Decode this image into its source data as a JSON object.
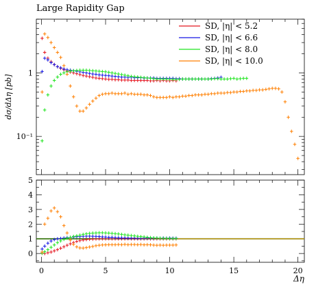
{
  "chart_data": {
    "type": "scatter",
    "title": "Large Rapidity Gap",
    "xlabel": "Δη",
    "ylabel": "dσ/dΔη [pb]",
    "xlim": [
      -0.4,
      20.5
    ],
    "ylim": [
      0.025,
      7
    ],
    "yscale": "log",
    "legend": "top-right",
    "main_y_ticks": [
      {
        "value": 1,
        "label": "1"
      },
      {
        "value": 0.1,
        "label": "10⁻¹"
      }
    ],
    "x_ticks": [
      {
        "value": 0,
        "label": "0"
      },
      {
        "value": 5,
        "label": "5"
      },
      {
        "value": 10,
        "label": "10"
      },
      {
        "value": 15,
        "label": "15"
      },
      {
        "value": 20,
        "label": "20"
      }
    ],
    "ratio": {
      "ylim": [
        -0.6,
        5
      ],
      "y_ticks": [
        {
          "value": 0,
          "label": "0"
        },
        {
          "value": 1,
          "label": "1"
        },
        {
          "value": 2,
          "label": "2"
        },
        {
          "value": 3,
          "label": "3"
        },
        {
          "value": 4,
          "label": "4"
        },
        {
          "value": 5,
          "label": "5"
        }
      ],
      "reference": 1
    },
    "series": [
      {
        "name": "SD, |η| < 5.2",
        "color": "#e4141e",
        "x": [
          0.05,
          0.25,
          0.5,
          0.75,
          1.0,
          1.25,
          1.5,
          1.75,
          2.0,
          2.25,
          2.5,
          2.75,
          3.0,
          3.25,
          3.5,
          3.75,
          4.0,
          4.25,
          4.5,
          4.75,
          5.0,
          5.25,
          5.5,
          5.75,
          6.0,
          6.25,
          6.5,
          6.75,
          7.0,
          7.25,
          7.5,
          7.75,
          8.0,
          8.25,
          8.5,
          8.75,
          9.0,
          9.25,
          9.5,
          9.75,
          10.0,
          10.25,
          10.5
        ],
        "y": [
          3.5,
          2.1,
          1.7,
          1.5,
          1.35,
          1.25,
          1.18,
          1.12,
          1.07,
          1.03,
          1.0,
          0.97,
          0.94,
          0.91,
          0.89,
          0.87,
          0.85,
          0.83,
          0.82,
          0.81,
          0.8,
          0.79,
          0.79,
          0.78,
          0.78,
          0.77,
          0.77,
          0.77,
          0.76,
          0.76,
          0.76,
          0.76,
          0.76,
          0.76,
          0.75,
          0.75,
          0.76,
          0.75,
          0.76,
          0.75,
          0.75,
          0.76,
          0.75
        ],
        "ratio": [
          0.02,
          0.0,
          0.05,
          0.1,
          0.18,
          0.26,
          0.36,
          0.46,
          0.56,
          0.66,
          0.74,
          0.82,
          0.88,
          0.92,
          0.95,
          0.97,
          0.98,
          0.99,
          1.0,
          1.0,
          1.0,
          1.01,
          1.0,
          1.0,
          1.0,
          1.0,
          1.0,
          1.01,
          1.0,
          1.0,
          1.0,
          1.0,
          1.0,
          1.01,
          1.0,
          1.0,
          1.0,
          1.0,
          1.0,
          1.0,
          1.0,
          1.0,
          1.0
        ]
      },
      {
        "name": "SD, |η| < 6.6",
        "color": "#1414e4",
        "x": [
          0.05,
          0.25,
          0.5,
          0.75,
          1.0,
          1.25,
          1.5,
          1.75,
          2.0,
          2.25,
          2.5,
          2.75,
          3.0,
          3.25,
          3.5,
          3.75,
          4.0,
          4.25,
          4.5,
          4.75,
          5.0,
          5.25,
          5.5,
          5.75,
          6.0,
          6.25,
          6.5,
          6.75,
          7.0,
          7.25,
          7.5,
          7.75,
          8.0,
          8.25,
          8.5,
          8.75,
          9.0,
          9.25,
          9.5,
          9.75,
          10.0,
          10.25,
          10.5,
          10.75,
          11.0,
          11.25,
          11.5,
          11.75,
          12.0,
          12.25,
          12.5,
          12.75,
          13.0,
          13.25,
          13.5,
          13.75,
          14.0
        ],
        "y": [
          1.05,
          1.7,
          1.6,
          1.45,
          1.35,
          1.25,
          1.2,
          1.15,
          1.12,
          1.1,
          1.08,
          1.06,
          1.04,
          1.02,
          1.0,
          0.98,
          0.96,
          0.95,
          0.93,
          0.92,
          0.91,
          0.9,
          0.89,
          0.88,
          0.87,
          0.86,
          0.86,
          0.85,
          0.85,
          0.84,
          0.84,
          0.84,
          0.83,
          0.83,
          0.83,
          0.83,
          0.82,
          0.82,
          0.82,
          0.82,
          0.82,
          0.82,
          0.81,
          0.81,
          0.8,
          0.8,
          0.8,
          0.8,
          0.8,
          0.8,
          0.8,
          0.8,
          0.8,
          0.81,
          0.82,
          0.83,
          0.85
        ],
        "ratio": [
          0.3,
          0.5,
          0.7,
          0.85,
          0.95,
          1.0,
          1.02,
          1.05,
          1.08,
          1.1,
          1.12,
          1.14,
          1.15,
          1.17,
          1.18,
          1.18,
          1.17,
          1.16,
          1.15,
          1.13,
          1.12,
          1.1,
          1.1,
          1.08,
          1.07,
          1.06,
          1.06,
          1.05,
          1.05,
          1.05,
          1.04,
          1.04,
          1.04,
          1.05,
          1.04,
          1.04,
          1.05,
          1.04,
          1.05,
          1.04,
          1.05,
          1.04,
          1.04
        ]
      },
      {
        "name": "SD, |η| < 8.0",
        "color": "#1ee41e",
        "x": [
          0.05,
          0.25,
          0.5,
          0.75,
          1.0,
          1.25,
          1.5,
          1.75,
          2.0,
          2.25,
          2.5,
          2.75,
          3.0,
          3.25,
          3.5,
          3.75,
          4.0,
          4.25,
          4.5,
          4.75,
          5.0,
          5.25,
          5.5,
          5.75,
          6.0,
          6.25,
          6.5,
          6.75,
          7.0,
          7.25,
          7.5,
          7.75,
          8.0,
          8.25,
          8.5,
          8.75,
          9.0,
          9.25,
          9.5,
          9.75,
          10.0,
          10.25,
          10.5,
          10.75,
          11.0,
          11.25,
          11.5,
          11.75,
          12.0,
          12.25,
          12.5,
          12.75,
          13.0,
          13.25,
          13.5,
          13.75,
          14.0,
          14.25,
          14.5,
          14.75,
          15.0,
          15.25,
          15.5,
          15.75,
          16.0
        ],
        "y": [
          0.085,
          0.26,
          0.45,
          0.62,
          0.76,
          0.86,
          0.95,
          1.0,
          1.04,
          1.07,
          1.08,
          1.09,
          1.1,
          1.1,
          1.1,
          1.09,
          1.08,
          1.07,
          1.06,
          1.05,
          1.04,
          1.02,
          1.0,
          0.98,
          0.96,
          0.94,
          0.92,
          0.9,
          0.88,
          0.87,
          0.86,
          0.85,
          0.84,
          0.83,
          0.82,
          0.81,
          0.8,
          0.8,
          0.8,
          0.8,
          0.79,
          0.79,
          0.79,
          0.79,
          0.8,
          0.8,
          0.8,
          0.8,
          0.8,
          0.8,
          0.8,
          0.8,
          0.8,
          0.8,
          0.81,
          0.81,
          0.8,
          0.8,
          0.8,
          0.81,
          0.82,
          0.8,
          0.81,
          0.82,
          0.82
        ],
        "ratio": [
          0.02,
          0.12,
          0.26,
          0.42,
          0.58,
          0.74,
          0.86,
          0.96,
          1.04,
          1.1,
          1.16,
          1.2,
          1.25,
          1.3,
          1.34,
          1.37,
          1.39,
          1.4,
          1.41,
          1.41,
          1.4,
          1.39,
          1.37,
          1.35,
          1.33,
          1.3,
          1.27,
          1.25,
          1.22,
          1.2,
          1.17,
          1.15,
          1.13,
          1.1,
          1.08,
          1.06,
          1.05,
          1.04,
          1.03,
          1.03,
          1.02,
          1.02,
          1.02
        ]
      },
      {
        "name": "SD, |η| < 10.0",
        "color": "#ff7f00",
        "x": [
          0.05,
          0.25,
          0.5,
          0.75,
          1.0,
          1.25,
          1.5,
          1.75,
          2.0,
          2.25,
          2.5,
          2.75,
          3.0,
          3.25,
          3.5,
          3.75,
          4.0,
          4.25,
          4.5,
          4.75,
          5.0,
          5.25,
          5.5,
          5.75,
          6.0,
          6.25,
          6.5,
          6.75,
          7.0,
          7.25,
          7.5,
          7.75,
          8.0,
          8.25,
          8.5,
          8.75,
          9.0,
          9.25,
          9.5,
          9.75,
          10.0,
          10.25,
          10.5,
          10.75,
          11.0,
          11.25,
          11.5,
          11.75,
          12.0,
          12.25,
          12.5,
          12.75,
          13.0,
          13.25,
          13.5,
          13.75,
          14.0,
          14.25,
          14.5,
          14.75,
          15.0,
          15.25,
          15.5,
          15.75,
          16.0,
          16.25,
          16.5,
          16.75,
          17.0,
          17.25,
          17.5,
          17.75,
          18.0,
          18.25,
          18.5,
          18.75,
          19.0,
          19.25,
          19.5,
          19.75,
          20.0
        ],
        "y": [
          0.5,
          4.1,
          3.6,
          3.0,
          2.5,
          2.1,
          1.75,
          1.3,
          0.95,
          0.62,
          0.42,
          0.3,
          0.25,
          0.25,
          0.28,
          0.32,
          0.36,
          0.4,
          0.44,
          0.46,
          0.47,
          0.47,
          0.48,
          0.47,
          0.47,
          0.47,
          0.48,
          0.46,
          0.47,
          0.46,
          0.46,
          0.46,
          0.45,
          0.45,
          0.44,
          0.42,
          0.41,
          0.41,
          0.41,
          0.41,
          0.42,
          0.41,
          0.42,
          0.42,
          0.43,
          0.43,
          0.44,
          0.44,
          0.45,
          0.45,
          0.45,
          0.46,
          0.46,
          0.47,
          0.47,
          0.48,
          0.48,
          0.48,
          0.49,
          0.49,
          0.5,
          0.5,
          0.51,
          0.51,
          0.52,
          0.52,
          0.53,
          0.53,
          0.54,
          0.54,
          0.55,
          0.56,
          0.57,
          0.57,
          0.56,
          0.5,
          0.35,
          0.2,
          0.12,
          0.075,
          0.045
        ],
        "ratio": [
          0.1,
          2.0,
          2.4,
          2.9,
          3.1,
          2.85,
          2.5,
          1.9,
          1.4,
          0.92,
          0.62,
          0.45,
          0.38,
          0.37,
          0.4,
          0.44,
          0.48,
          0.53,
          0.56,
          0.58,
          0.59,
          0.6,
          0.6,
          0.6,
          0.61,
          0.6,
          0.62,
          0.6,
          0.61,
          0.61,
          0.6,
          0.61,
          0.59,
          0.6,
          0.59,
          0.57,
          0.56,
          0.57,
          0.56,
          0.57,
          0.57,
          0.57,
          0.58
        ]
      }
    ]
  }
}
